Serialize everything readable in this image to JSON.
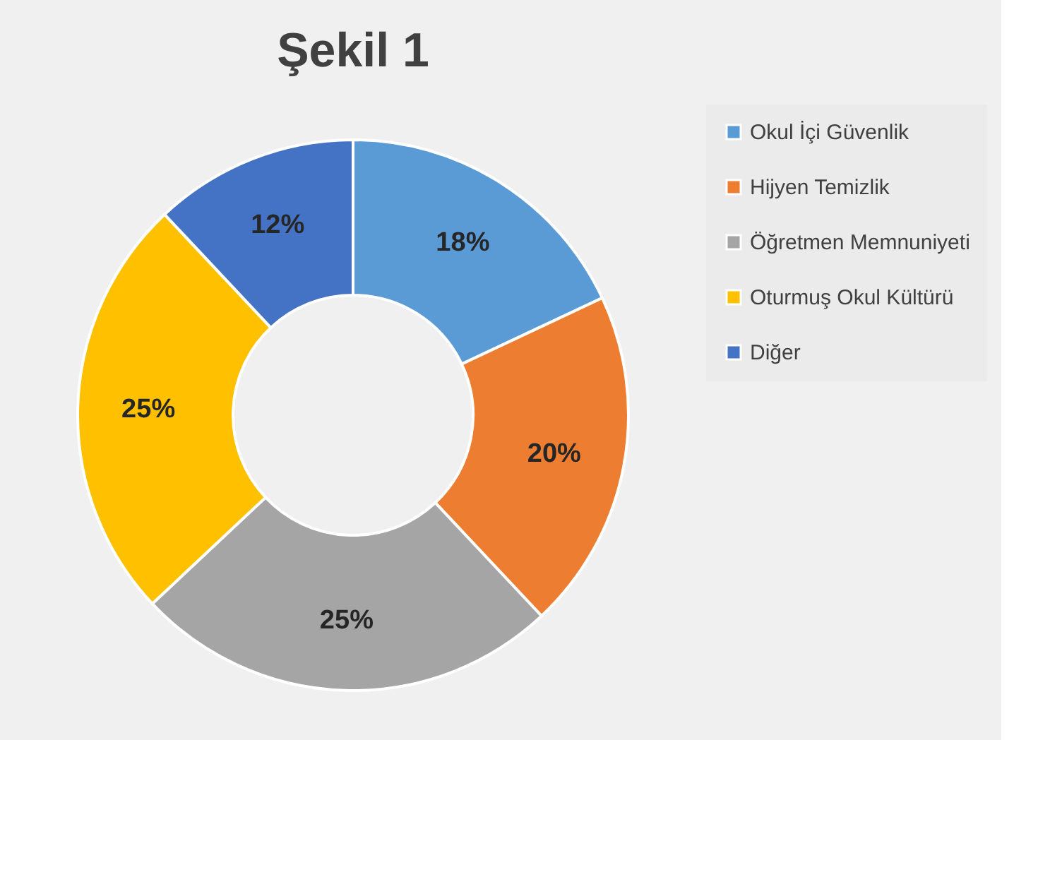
{
  "chart_data": {
    "type": "donut",
    "title": "Şekil 1",
    "categories": [
      "Okul İçi Güvenlik",
      "Hijyen Temizlik",
      "Öğretmen Memnuniyeti",
      "Oturmuş Okul Kültürü",
      "Diğer"
    ],
    "values": [
      18,
      20,
      25,
      25,
      12
    ],
    "value_labels": [
      "18%",
      "20%",
      "25%",
      "25%",
      "12%"
    ],
    "colors": [
      "#5b9bd5",
      "#ed7d31",
      "#a5a5a5",
      "#ffc000",
      "#4472c4"
    ],
    "legend": "right"
  }
}
